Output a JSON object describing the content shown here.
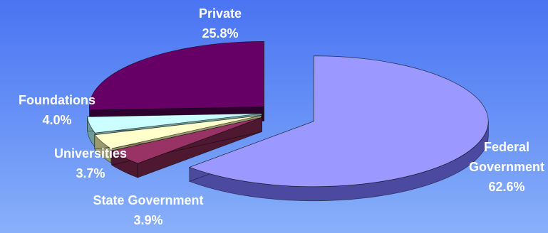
{
  "chart_data": {
    "type": "pie",
    "title": "",
    "slices": [
      {
        "label": "Federal Government",
        "label_lines": [
          "Federal",
          "Government"
        ],
        "value": 62.6,
        "value_label": "62.6%",
        "color": "#9b99ff",
        "side_color": "#4c4aa0"
      },
      {
        "label": "State Government",
        "label_lines": [
          "State Government"
        ],
        "value": 3.9,
        "value_label": "3.9%",
        "color": "#993366",
        "side_color": "#4d1830"
      },
      {
        "label": "Universities",
        "label_lines": [
          "Universities"
        ],
        "value": 3.7,
        "value_label": "3.7%",
        "color": "#ffffcc",
        "side_color": "#9a9a70"
      },
      {
        "label": "Foundations",
        "label_lines": [
          "Foundations"
        ],
        "value": 4.0,
        "value_label": "4.0%",
        "color": "#ccffff",
        "side_color": "#6f9a9a"
      },
      {
        "label": "Private",
        "label_lines": [
          "Private"
        ],
        "value": 25.8,
        "value_label": "25.8%",
        "color": "#660066",
        "side_color": "#2e002e"
      }
    ],
    "style": "3d-exploded",
    "label_color": "#ffffff"
  }
}
